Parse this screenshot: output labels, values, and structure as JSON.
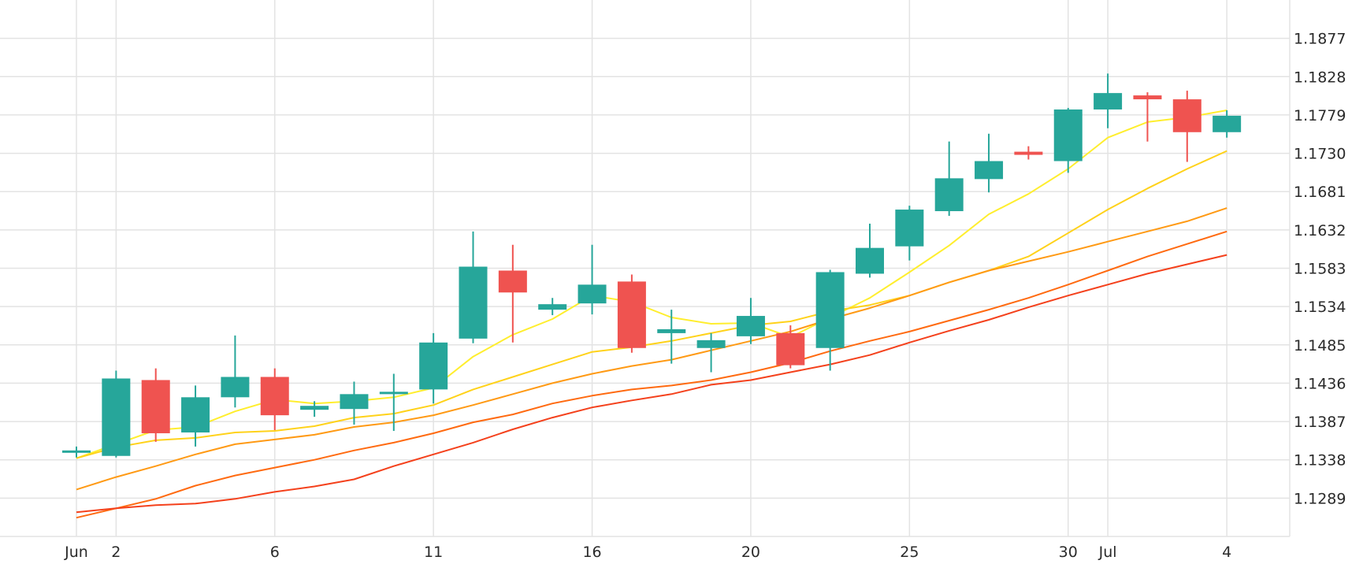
{
  "chart_data": {
    "type": "candlestick",
    "title": "",
    "xlabel": "",
    "ylabel": "",
    "ylim": [
      1.124,
      1.1926
    ],
    "grid": true,
    "colors": {
      "up": "#26a69a",
      "down": "#ef5350",
      "grid": "#e3e3e3",
      "axis": "#2a2a2a"
    },
    "x_tick_labels": [
      {
        "label": "Jun",
        "day": 0
      },
      {
        "label": "2",
        "day": 1
      },
      {
        "label": "6",
        "day": 5
      },
      {
        "label": "11",
        "day": 9
      },
      {
        "label": "16",
        "day": 13
      },
      {
        "label": "20",
        "day": 17
      },
      {
        "label": "25",
        "day": 21
      },
      {
        "label": "30",
        "day": 25
      },
      {
        "label": "Jul",
        "day": 26
      },
      {
        "label": "4",
        "day": 29
      }
    ],
    "y_tick_labels": [
      "1.1289",
      "1.1338",
      "1.1387",
      "1.1436",
      "1.1485",
      "1.1534",
      "1.1583",
      "1.1632",
      "1.1681",
      "1.1730",
      "1.1779",
      "1.1828",
      "1.1877"
    ],
    "candles": [
      {
        "day": 0,
        "open": 1.1347,
        "high": 1.1355,
        "low": 1.1341,
        "close": 1.135
      },
      {
        "day": 1,
        "open": 1.1343,
        "high": 1.1452,
        "low": 1.1341,
        "close": 1.1442
      },
      {
        "day": 2,
        "open": 1.144,
        "high": 1.1455,
        "low": 1.1361,
        "close": 1.1372
      },
      {
        "day": 3,
        "open": 1.1373,
        "high": 1.1433,
        "low": 1.1355,
        "close": 1.1418
      },
      {
        "day": 4,
        "open": 1.1418,
        "high": 1.1497,
        "low": 1.1405,
        "close": 1.1444
      },
      {
        "day": 5,
        "open": 1.1444,
        "high": 1.1455,
        "low": 1.1376,
        "close": 1.1395
      },
      {
        "day": 6,
        "open": 1.1402,
        "high": 1.1413,
        "low": 1.1393,
        "close": 1.1407
      },
      {
        "day": 7,
        "open": 1.1403,
        "high": 1.1438,
        "low": 1.1383,
        "close": 1.1422
      },
      {
        "day": 8,
        "open": 1.1423,
        "high": 1.1448,
        "low": 1.1375,
        "close": 1.1425
      },
      {
        "day": 9,
        "open": 1.1428,
        "high": 1.15,
        "low": 1.141,
        "close": 1.1488
      },
      {
        "day": 10,
        "open": 1.1493,
        "high": 1.163,
        "low": 1.1487,
        "close": 1.1585
      },
      {
        "day": 11,
        "open": 1.158,
        "high": 1.1613,
        "low": 1.1488,
        "close": 1.1552
      },
      {
        "day": 12,
        "open": 1.153,
        "high": 1.1545,
        "low": 1.1523,
        "close": 1.1537
      },
      {
        "day": 13,
        "open": 1.1538,
        "high": 1.1613,
        "low": 1.1524,
        "close": 1.1562
      },
      {
        "day": 14,
        "open": 1.1566,
        "high": 1.1575,
        "low": 1.1475,
        "close": 1.1481
      },
      {
        "day": 15,
        "open": 1.15,
        "high": 1.153,
        "low": 1.1461,
        "close": 1.1505
      },
      {
        "day": 16,
        "open": 1.1481,
        "high": 1.15,
        "low": 1.145,
        "close": 1.1491
      },
      {
        "day": 17,
        "open": 1.1496,
        "high": 1.1545,
        "low": 1.1486,
        "close": 1.1522
      },
      {
        "day": 18,
        "open": 1.15,
        "high": 1.151,
        "low": 1.1455,
        "close": 1.1459
      },
      {
        "day": 19,
        "open": 1.1481,
        "high": 1.1581,
        "low": 1.1452,
        "close": 1.1578
      },
      {
        "day": 20,
        "open": 1.1576,
        "high": 1.164,
        "low": 1.1571,
        "close": 1.1609
      },
      {
        "day": 21,
        "open": 1.1611,
        "high": 1.1663,
        "low": 1.1593,
        "close": 1.1658
      },
      {
        "day": 22,
        "open": 1.1656,
        "high": 1.1745,
        "low": 1.165,
        "close": 1.1698
      },
      {
        "day": 23,
        "open": 1.1697,
        "high": 1.1755,
        "low": 1.168,
        "close": 1.172
      },
      {
        "day": 24,
        "open": 1.1732,
        "high": 1.1739,
        "low": 1.1722,
        "close": 1.1728
      },
      {
        "day": 25,
        "open": 1.172,
        "high": 1.1788,
        "low": 1.1705,
        "close": 1.1786
      },
      {
        "day": 26,
        "open": 1.1786,
        "high": 1.1832,
        "low": 1.1762,
        "close": 1.1807
      },
      {
        "day": 27,
        "open": 1.1804,
        "high": 1.1808,
        "low": 1.1745,
        "close": 1.1799
      },
      {
        "day": 28,
        "open": 1.1799,
        "high": 1.181,
        "low": 1.1719,
        "close": 1.1757
      },
      {
        "day": 29,
        "open": 1.1757,
        "high": 1.1785,
        "low": 1.175,
        "close": 1.1778
      }
    ],
    "series": [
      {
        "type": "line",
        "color": "#ffee2e",
        "points": [
          [
            0,
            1.134
          ],
          [
            1,
            1.1358
          ],
          [
            2,
            1.1376
          ],
          [
            3,
            1.138
          ],
          [
            4,
            1.14
          ],
          [
            5,
            1.1415
          ],
          [
            6,
            1.141
          ],
          [
            7,
            1.1413
          ],
          [
            8,
            1.1418
          ],
          [
            9,
            1.143
          ],
          [
            10,
            1.147
          ],
          [
            11,
            1.1498
          ],
          [
            12,
            1.1518
          ],
          [
            13,
            1.1548
          ],
          [
            14,
            1.154
          ],
          [
            15,
            1.152
          ],
          [
            16,
            1.1512
          ],
          [
            17,
            1.1513
          ],
          [
            18,
            1.1495
          ],
          [
            19,
            1.152
          ],
          [
            20,
            1.1545
          ],
          [
            21,
            1.1578
          ],
          [
            22,
            1.1612
          ],
          [
            23,
            1.1652
          ],
          [
            24,
            1.1678
          ],
          [
            25,
            1.171
          ],
          [
            26,
            1.175
          ],
          [
            27,
            1.177
          ],
          [
            28,
            1.1776
          ],
          [
            29,
            1.1785
          ]
        ]
      },
      {
        "type": "line",
        "color": "#ffd21a",
        "points": [
          [
            0,
            1.134
          ],
          [
            1,
            1.1354
          ],
          [
            2,
            1.1363
          ],
          [
            3,
            1.1366
          ],
          [
            4,
            1.1373
          ],
          [
            5,
            1.1375
          ],
          [
            6,
            1.1381
          ],
          [
            7,
            1.1392
          ],
          [
            8,
            1.1397
          ],
          [
            9,
            1.1408
          ],
          [
            10,
            1.1428
          ],
          [
            11,
            1.1444
          ],
          [
            12,
            1.146
          ],
          [
            13,
            1.1476
          ],
          [
            14,
            1.1482
          ],
          [
            15,
            1.149
          ],
          [
            16,
            1.15
          ],
          [
            17,
            1.151
          ],
          [
            18,
            1.1515
          ],
          [
            19,
            1.1528
          ],
          [
            20,
            1.1536
          ],
          [
            21,
            1.1548
          ],
          [
            22,
            1.1565
          ],
          [
            23,
            1.158
          ],
          [
            24,
            1.1598
          ],
          [
            25,
            1.1628
          ],
          [
            26,
            1.1658
          ],
          [
            27,
            1.1685
          ],
          [
            28,
            1.171
          ],
          [
            29,
            1.1733
          ]
        ]
      },
      {
        "type": "line",
        "color": "#ff9a14",
        "points": [
          [
            0,
            1.13
          ],
          [
            1,
            1.1316
          ],
          [
            2,
            1.133
          ],
          [
            3,
            1.1345
          ],
          [
            4,
            1.1358
          ],
          [
            5,
            1.1364
          ],
          [
            6,
            1.137
          ],
          [
            7,
            1.138
          ],
          [
            8,
            1.1386
          ],
          [
            9,
            1.1395
          ],
          [
            10,
            1.1408
          ],
          [
            11,
            1.1422
          ],
          [
            12,
            1.1436
          ],
          [
            13,
            1.1448
          ],
          [
            14,
            1.1458
          ],
          [
            15,
            1.1466
          ],
          [
            16,
            1.1478
          ],
          [
            17,
            1.149
          ],
          [
            18,
            1.1502
          ],
          [
            19,
            1.1518
          ],
          [
            20,
            1.1532
          ],
          [
            21,
            1.1548
          ],
          [
            22,
            1.1565
          ],
          [
            23,
            1.158
          ],
          [
            24,
            1.1592
          ],
          [
            25,
            1.1604
          ],
          [
            26,
            1.1617
          ],
          [
            27,
            1.163
          ],
          [
            28,
            1.1643
          ],
          [
            29,
            1.166
          ]
        ]
      },
      {
        "type": "line",
        "color": "#ff6a10",
        "points": [
          [
            0,
            1.1264
          ],
          [
            1,
            1.1276
          ],
          [
            2,
            1.1288
          ],
          [
            3,
            1.1305
          ],
          [
            4,
            1.1318
          ],
          [
            5,
            1.1328
          ],
          [
            6,
            1.1338
          ],
          [
            7,
            1.135
          ],
          [
            8,
            1.136
          ],
          [
            9,
            1.1372
          ],
          [
            10,
            1.1386
          ],
          [
            11,
            1.1396
          ],
          [
            12,
            1.141
          ],
          [
            13,
            1.142
          ],
          [
            14,
            1.1428
          ],
          [
            15,
            1.1433
          ],
          [
            16,
            1.144
          ],
          [
            17,
            1.145
          ],
          [
            18,
            1.1462
          ],
          [
            19,
            1.1477
          ],
          [
            20,
            1.149
          ],
          [
            21,
            1.1502
          ],
          [
            22,
            1.1516
          ],
          [
            23,
            1.153
          ],
          [
            24,
            1.1545
          ],
          [
            25,
            1.1562
          ],
          [
            26,
            1.158
          ],
          [
            27,
            1.1598
          ],
          [
            28,
            1.1614
          ],
          [
            29,
            1.163
          ]
        ]
      },
      {
        "type": "line",
        "color": "#f4411c",
        "points": [
          [
            0,
            1.1271
          ],
          [
            1,
            1.1276
          ],
          [
            2,
            1.128
          ],
          [
            3,
            1.1282
          ],
          [
            4,
            1.1288
          ],
          [
            5,
            1.1297
          ],
          [
            6,
            1.1304
          ],
          [
            7,
            1.1313
          ],
          [
            8,
            1.133
          ],
          [
            9,
            1.1345
          ],
          [
            10,
            1.136
          ],
          [
            11,
            1.1377
          ],
          [
            12,
            1.1392
          ],
          [
            13,
            1.1405
          ],
          [
            14,
            1.1414
          ],
          [
            15,
            1.1422
          ],
          [
            16,
            1.1434
          ],
          [
            17,
            1.144
          ],
          [
            18,
            1.145
          ],
          [
            19,
            1.146
          ],
          [
            20,
            1.1472
          ],
          [
            21,
            1.1488
          ],
          [
            22,
            1.1503
          ],
          [
            23,
            1.1517
          ],
          [
            24,
            1.1533
          ],
          [
            25,
            1.1548
          ],
          [
            26,
            1.1562
          ],
          [
            27,
            1.1576
          ],
          [
            28,
            1.1588
          ],
          [
            29,
            1.16
          ]
        ]
      }
    ]
  }
}
